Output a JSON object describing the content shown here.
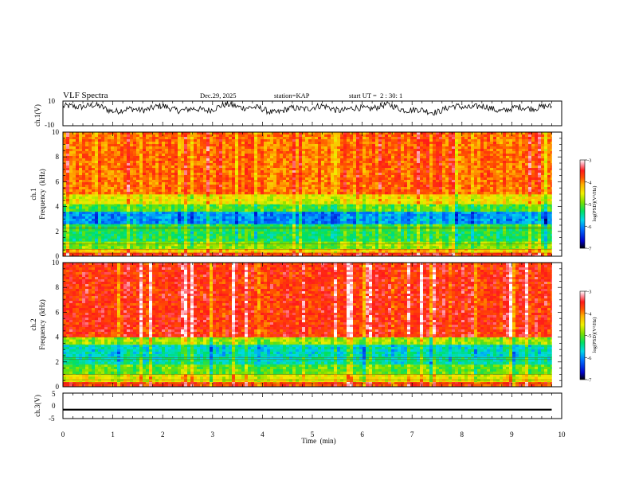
{
  "header": {
    "title": "VLF Spectra",
    "date": "Dec.29, 2025",
    "station": "station=KAP",
    "start": "start UT =  2 : 30: 1"
  },
  "chart_data": [
    {
      "type": "line",
      "panel": "ch1-waveform",
      "ylabel": "ch.1(V)",
      "xlim": [
        0,
        10
      ],
      "ylim": [
        -10,
        10
      ],
      "yticks": [
        "10",
        "-10"
      ],
      "x_end": 9.8,
      "mean": 4,
      "amplitude_range": [
        -2,
        10
      ],
      "note_values": "dense oscillating trace between roughly -2 and 10 V"
    },
    {
      "type": "heatmap",
      "panel": "ch1-spectrogram",
      "ylabel": "ch.1\nFrequency  (kHz)",
      "ylabel_line1": "ch.1",
      "ylabel_line2": "Frequency  (kHz)",
      "xlim": [
        0,
        10
      ],
      "ylim": [
        0,
        10
      ],
      "yticks": [
        "0",
        "2",
        "4",
        "6",
        "8",
        "10"
      ],
      "x_end": 9.8,
      "bands_khz": [
        {
          "from": 0.0,
          "to": 0.3,
          "level": -3.6
        },
        {
          "from": 0.3,
          "to": 0.6,
          "level": -4.3
        },
        {
          "from": 0.6,
          "to": 1.2,
          "level": -4.9
        },
        {
          "from": 1.2,
          "to": 2.0,
          "level": -5.3
        },
        {
          "from": 2.0,
          "to": 2.6,
          "level": -5.2
        },
        {
          "from": 2.6,
          "to": 3.6,
          "level": -6.0
        },
        {
          "from": 3.6,
          "to": 4.2,
          "level": -5.1
        },
        {
          "from": 4.2,
          "to": 5.0,
          "level": -4.5
        },
        {
          "from": 5.0,
          "to": 10.0,
          "level": -3.9
        }
      ],
      "colorbar": {
        "label": "log(PSD)(V²/Hz)",
        "ticks": [
          "-3",
          "-4",
          "-5",
          "-6",
          "-7"
        ],
        "range": [
          -7,
          -3
        ]
      }
    },
    {
      "type": "heatmap",
      "panel": "ch2-spectrogram",
      "ylabel": "ch.2\nFrequency  (kHz)",
      "ylabel_line1": "ch.2",
      "ylabel_line2": "Frequency  (kHz)",
      "xlim": [
        0,
        10
      ],
      "ylim": [
        0,
        10
      ],
      "yticks": [
        "0",
        "2",
        "4",
        "6",
        "8",
        "10"
      ],
      "x_end": 9.8,
      "bands_khz": [
        {
          "from": 0.0,
          "to": 0.4,
          "level": -3.7
        },
        {
          "from": 0.4,
          "to": 1.0,
          "level": -4.5
        },
        {
          "from": 1.0,
          "to": 1.8,
          "level": -5.0
        },
        {
          "from": 1.8,
          "to": 2.4,
          "level": -5.5
        },
        {
          "from": 2.4,
          "to": 3.4,
          "level": -5.6
        },
        {
          "from": 3.4,
          "to": 4.0,
          "level": -4.8
        },
        {
          "from": 4.0,
          "to": 10.0,
          "level": -3.6
        }
      ],
      "colorbar": {
        "label": "log(PSD)(V²/Hz)",
        "ticks": [
          "-3",
          "-4",
          "-5",
          "-6",
          "-7"
        ],
        "range": [
          -7,
          -3
        ]
      }
    },
    {
      "type": "line",
      "panel": "ch3-waveform",
      "ylabel": "ch.3(V)",
      "xlim": [
        0,
        10
      ],
      "ylim": [
        -5,
        5
      ],
      "yticks": [
        "5",
        "0",
        "-5"
      ],
      "x_end": 9.8,
      "level": -1.5,
      "band_halfwidth": 0.35
    }
  ],
  "xaxis": {
    "label": "Time  (min)",
    "ticks": [
      "0",
      "1",
      "2",
      "3",
      "4",
      "5",
      "6",
      "7",
      "8",
      "9",
      "10"
    ]
  },
  "colors": {
    "axis": "#000000",
    "trace": "#000000"
  }
}
